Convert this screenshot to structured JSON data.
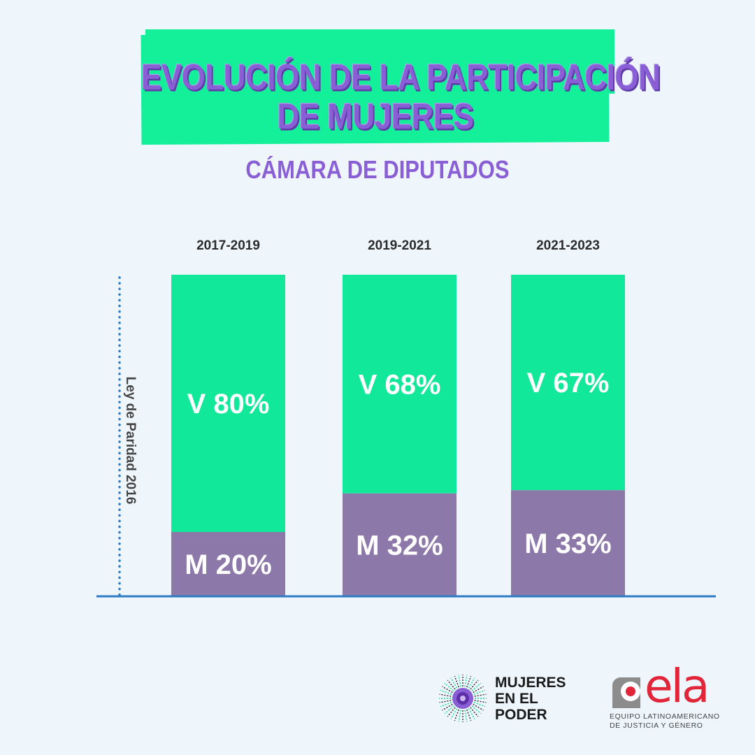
{
  "title": {
    "line1": "EVOLUCIÓN DE LA PARTICIPACIÓN",
    "line2": "DE MUJERES"
  },
  "subtitle": "CÁMARA DE DIPUTADOS",
  "colors": {
    "banner": "#14f09a",
    "title": "#8a5fd6",
    "varones": "#12e89a",
    "mujeres": "#8c79aa",
    "baseline": "#2f7ac4",
    "annotation_line": "#2f7ac4"
  },
  "annotation": "Ley de Paridad 2016",
  "chart_data": {
    "type": "bar",
    "stacked": true,
    "categories": [
      "2017-2019",
      "2019-2021",
      "2021-2023"
    ],
    "series": [
      {
        "name": "M",
        "values": [
          20,
          32,
          33
        ]
      },
      {
        "name": "V",
        "values": [
          80,
          68,
          67
        ]
      }
    ],
    "data_labels": {
      "V": [
        "V 80%",
        "V 68%",
        "V 67%"
      ],
      "M": [
        "M 20%",
        "M 32%",
        "M 33%"
      ]
    },
    "ylim": [
      0,
      100
    ],
    "grid": false,
    "legend": "none"
  },
  "logos": {
    "mujeres_en_el_poder": [
      "MUJERES",
      "EN EL",
      "PODER"
    ],
    "ela": {
      "word": "ela",
      "subtitle_line1": "EQUIPO LATINOAMERICANO",
      "subtitle_line2": "DE JUSTICIA Y GÉNERO"
    }
  }
}
